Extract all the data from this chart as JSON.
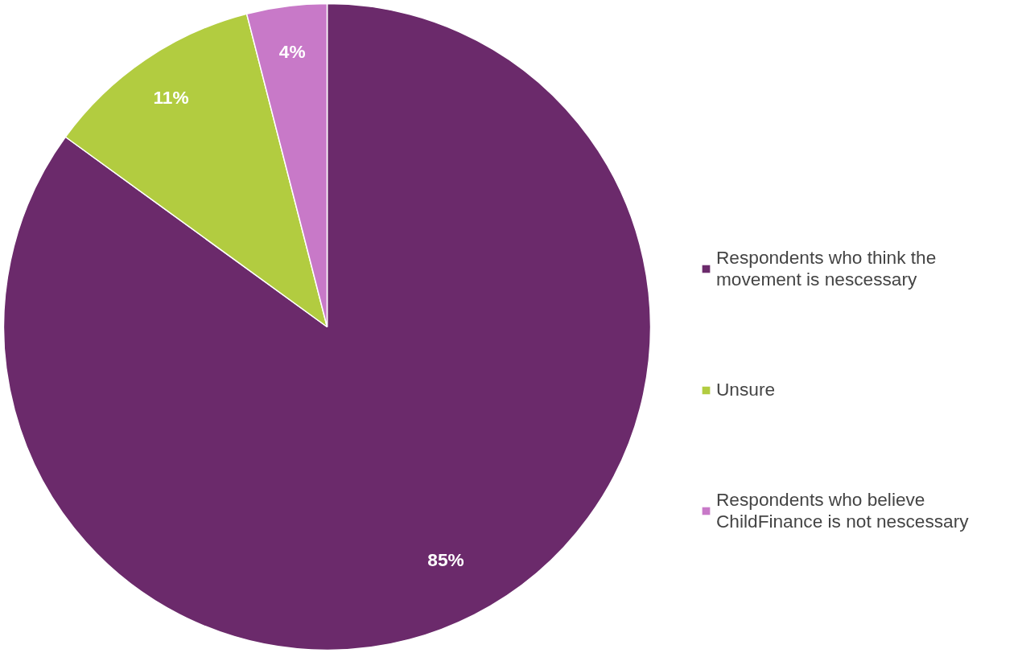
{
  "chart_data": {
    "type": "pie",
    "categories": [
      "Respondents who think the movement is nescessary",
      "Unsure",
      "Respondents who believe ChildFinance is not nescessary"
    ],
    "values": [
      85,
      11,
      4
    ],
    "value_labels": [
      "85%",
      "11%",
      "4%"
    ],
    "colors": [
      "#6b2a6b",
      "#b2cc40",
      "#c879c8"
    ],
    "legend": "right"
  }
}
